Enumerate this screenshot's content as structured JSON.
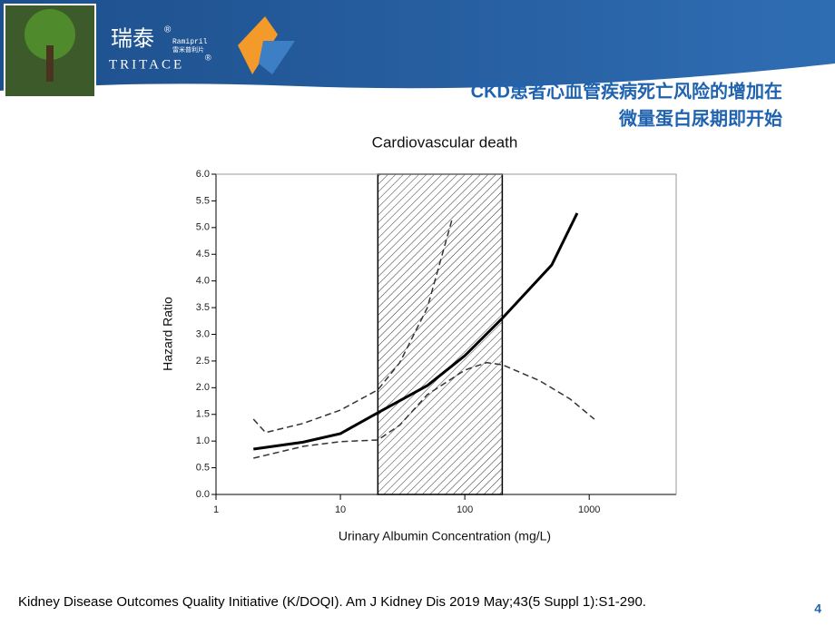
{
  "header": {
    "brand_cn": "瑞泰",
    "reg1": "®",
    "ramipril": "Ramipril",
    "ramipril_cn": "雷米普利片",
    "brand_en": "TRITACE",
    "reg2": "®"
  },
  "slide_title": [
    "CKD患者心血管疾病死亡风险的增加在",
    "微量蛋白尿期即开始"
  ],
  "footer": {
    "citation": "Kidney Disease Outcomes Quality Initiative (K/DOQI). Am J Kidney Dis 2019 May;43(5 Suppl 1):S1-290.",
    "page": "4"
  },
  "chart_data": {
    "type": "line",
    "title": "Cardiovascular death",
    "x_label": "Urinary Albumin Concentration (mg/L)",
    "y_label": "Hazard Ratio",
    "x_log": true,
    "xlim": [
      1,
      5000
    ],
    "xticks": [
      1,
      10,
      100,
      1000
    ],
    "ylim": [
      0,
      6
    ],
    "yticks": [
      {
        "value": 0,
        "label": "0.0"
      },
      0.5,
      {
        "value": 1,
        "label": "1.0"
      },
      1.5,
      {
        "value": 2,
        "label": "2.0"
      },
      2.5,
      {
        "value": 3,
        "label": "3.0"
      },
      3.5,
      {
        "value": 4,
        "label": "4.0"
      },
      4.5,
      {
        "value": 5,
        "label": "5.0"
      },
      5.5,
      {
        "value": 6,
        "label": "6.0"
      }
    ],
    "shaded_range": [
      20,
      200
    ],
    "series": [
      {
        "color": "#000000",
        "dashed": false,
        "x": [
          2,
          5,
          10,
          20,
          50,
          100,
          200,
          500,
          800
        ],
        "values": [
          0.85,
          0.98,
          1.14,
          1.53,
          2.04,
          2.6,
          3.3,
          4.3,
          5.27
        ]
      },
      {
        "color": "#333333",
        "dashed": true,
        "x": [
          2,
          2.5,
          5,
          10,
          20,
          30,
          50,
          80
        ],
        "values": [
          1.41,
          1.16,
          1.33,
          1.58,
          1.96,
          2.47,
          3.5,
          5.2
        ]
      },
      {
        "color": "#333333",
        "dashed": true,
        "x": [
          2,
          5,
          10,
          20,
          30,
          50,
          100,
          150,
          200,
          400,
          700,
          1100
        ],
        "values": [
          0.68,
          0.9,
          0.99,
          1.02,
          1.3,
          1.87,
          2.33,
          2.47,
          2.43,
          2.13,
          1.79,
          1.41
        ]
      }
    ]
  }
}
